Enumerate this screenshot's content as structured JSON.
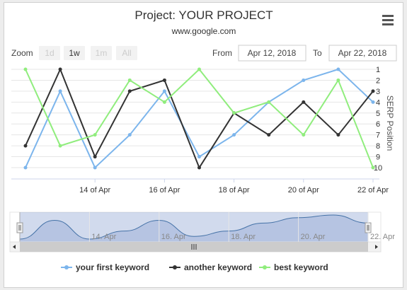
{
  "title": "Project: YOUR PROJECT",
  "subtitle": "www.google.com",
  "menu_icon": "hamburger-menu-icon",
  "range_selector": {
    "zoom_label": "Zoom",
    "buttons": [
      {
        "label": "1d",
        "state": "disabled"
      },
      {
        "label": "1w",
        "state": "enabled"
      },
      {
        "label": "1m",
        "state": "disabled"
      },
      {
        "label": "All",
        "state": "disabled"
      }
    ],
    "from_label": "From",
    "from_value": "Apr 12, 2018",
    "to_label": "To",
    "to_value": "Apr 22, 2018"
  },
  "chart_data": {
    "type": "line",
    "x": [
      "2018-04-12",
      "2018-04-13",
      "2018-04-14",
      "2018-04-15",
      "2018-04-16",
      "2018-04-17",
      "2018-04-18",
      "2018-04-19",
      "2018-04-20",
      "2018-04-21",
      "2018-04-22"
    ],
    "x_tick_labels": [
      "14 of Apr",
      "16 of Apr",
      "18 of Apr",
      "20 of Apr",
      "22 of Apr"
    ],
    "ylabel": "SERP Position",
    "y_ticks": [
      "1",
      "2",
      "3",
      "4",
      "5",
      "6",
      "7",
      "8",
      "9",
      "10"
    ],
    "ylim": [
      1,
      10
    ],
    "y_reversed": true,
    "series": [
      {
        "name": "your first keyword",
        "color": "#7cb5ec",
        "points": [
          [
            "2018-04-12",
            10
          ],
          [
            "2018-04-13",
            3
          ],
          [
            "2018-04-14",
            10
          ],
          [
            "2018-04-15",
            7
          ],
          [
            "2018-04-16",
            3
          ],
          [
            "2018-04-17",
            9
          ],
          [
            "2018-04-18",
            7
          ],
          [
            "2018-04-19",
            4
          ],
          [
            "2018-04-20",
            2
          ],
          [
            "2018-04-21",
            1
          ],
          [
            "2018-04-22",
            4
          ]
        ]
      },
      {
        "name": "another keyword",
        "color": "#333333",
        "points": [
          [
            "2018-04-12",
            8
          ],
          [
            "2018-04-13",
            1
          ],
          [
            "2018-04-14",
            9
          ],
          [
            "2018-04-15",
            3
          ],
          [
            "2018-04-16",
            2
          ],
          [
            "2018-04-17",
            10
          ],
          [
            "2018-04-18",
            5
          ],
          [
            "2018-04-19",
            7
          ],
          [
            "2018-04-20",
            4
          ],
          [
            "2018-04-21",
            7
          ],
          [
            "2018-04-22",
            3
          ]
        ]
      },
      {
        "name": "best keyword",
        "color": "#90ed7d",
        "points": [
          [
            "2018-04-12",
            1
          ],
          [
            "2018-04-13",
            8
          ],
          [
            "2018-04-14",
            7
          ],
          [
            "2018-04-15",
            2
          ],
          [
            "2018-04-16",
            4
          ],
          [
            "2018-04-17",
            1
          ],
          [
            "2018-04-18",
            5
          ],
          [
            "2018-04-19",
            4
          ],
          [
            "2018-04-20",
            7
          ],
          [
            "2018-04-21",
            2
          ],
          [
            "2018-04-22",
            10
          ]
        ]
      }
    ],
    "legend_position": "bottom-center",
    "grid": true
  },
  "navigator": {
    "tick_labels": [
      "14. Apr",
      "16. Apr",
      "18. Apr",
      "20. Apr",
      "22. Apr"
    ],
    "scrollbar_grip": "scrollbar-grip-icon",
    "left_arrow": "left-arrow-icon",
    "right_arrow": "right-arrow-icon"
  }
}
